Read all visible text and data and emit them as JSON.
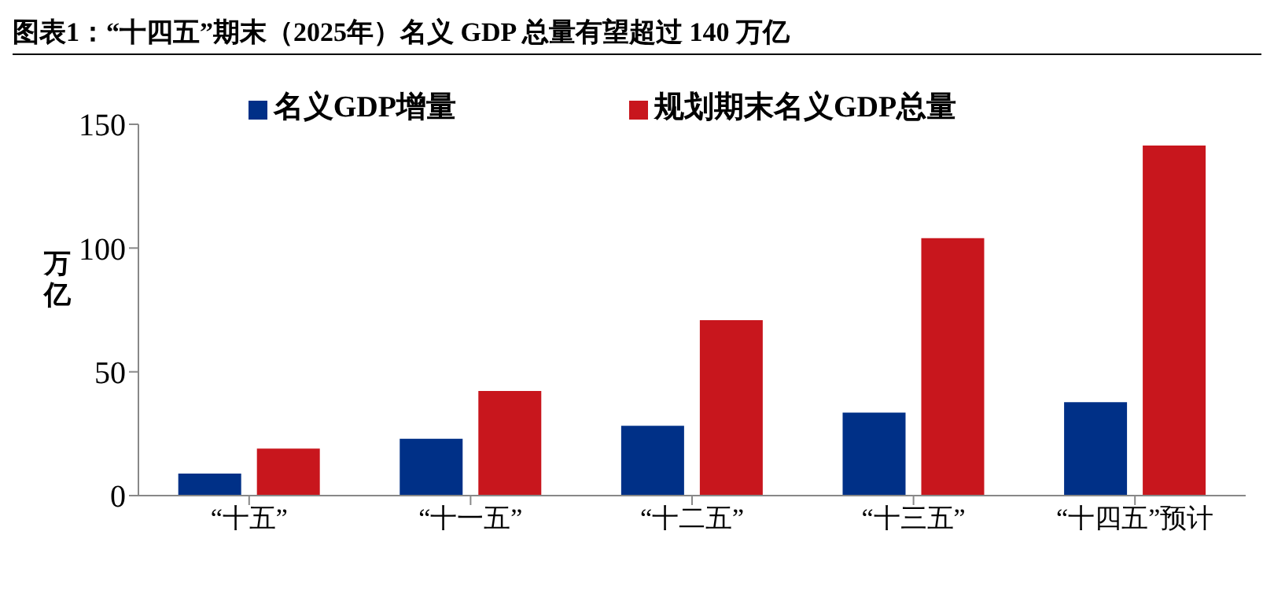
{
  "chart_data": {
    "type": "bar",
    "title": "图表1：“十四五”期末（2025年）名义 GDP 总量有望超过 140 万亿",
    "ylabel": "万亿",
    "categories": [
      "“十五”",
      "“十一五”",
      "“十二五”",
      "“十三五”",
      "“十四五”预计"
    ],
    "series": [
      {
        "name": "名义GDP增量",
        "color": "#003087",
        "values": [
          8.9,
          23.0,
          28.2,
          33.5,
          37.7
        ]
      },
      {
        "name": "规划期末名义GDP总量",
        "color": "#c8161d",
        "values": [
          19.0,
          42.3,
          70.9,
          104,
          141.4
        ]
      }
    ],
    "ylim": [
      0,
      150
    ],
    "yticks": [
      0,
      50,
      100,
      150
    ],
    "grid": false,
    "legend": "top"
  }
}
